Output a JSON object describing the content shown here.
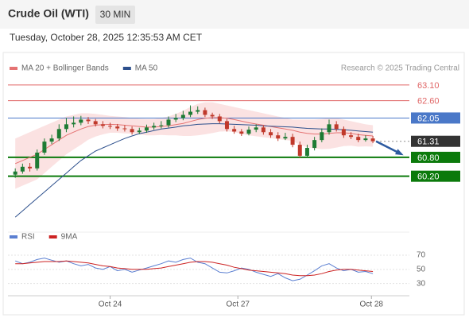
{
  "chart_data": [
    {
      "type": "candlestick",
      "title": "Crude Oil (WTI)",
      "timeframe": "30 MIN",
      "subtitle": "Tuesday, October 28, 2025 12:35:53 AM CET",
      "source": "Research © 2025 Trading Central",
      "xlim": [
        -1,
        54
      ],
      "ylim": [
        58.6,
        63.4
      ],
      "up_color": "#1e7b34",
      "down_color": "#c0392b",
      "ohlc": {
        "open": [
          60.25,
          60.35,
          60.5,
          60.45,
          60.95,
          61.3,
          61.4,
          61.7,
          61.85,
          61.9,
          62.0,
          61.95,
          61.85,
          61.8,
          61.78,
          61.72,
          61.7,
          61.6,
          61.65,
          61.75,
          61.8,
          61.82,
          62.0,
          62.05,
          62.15,
          62.25,
          62.3,
          62.15,
          62.1,
          61.95,
          61.7,
          61.62,
          61.55,
          61.68,
          61.75,
          61.6,
          61.5,
          61.4,
          61.45,
          61.2,
          60.85,
          61.1,
          61.35,
          61.6,
          61.85,
          61.7,
          61.5,
          61.45,
          61.35,
          61.4
        ],
        "high": [
          60.45,
          60.6,
          60.62,
          61.05,
          61.4,
          61.52,
          61.85,
          62.05,
          62.1,
          62.12,
          62.08,
          62.02,
          61.95,
          61.9,
          61.86,
          61.82,
          61.78,
          61.74,
          61.84,
          61.9,
          61.95,
          62.1,
          62.18,
          62.28,
          62.45,
          62.42,
          62.38,
          62.22,
          62.18,
          62.02,
          61.8,
          61.7,
          61.78,
          61.85,
          61.82,
          61.7,
          61.6,
          61.58,
          61.55,
          61.3,
          61.2,
          61.45,
          61.72,
          62.0,
          61.95,
          61.78,
          61.6,
          61.55,
          61.5,
          61.48
        ],
        "low": [
          60.15,
          60.28,
          60.35,
          60.38,
          60.88,
          61.22,
          61.32,
          61.6,
          61.75,
          61.82,
          61.86,
          61.78,
          61.72,
          61.7,
          61.64,
          61.62,
          61.52,
          61.54,
          61.58,
          61.68,
          61.72,
          61.75,
          61.92,
          61.98,
          62.08,
          62.18,
          62.08,
          62.02,
          61.88,
          61.62,
          61.55,
          61.48,
          61.5,
          61.6,
          61.52,
          61.42,
          61.32,
          61.35,
          61.12,
          60.78,
          60.8,
          61.02,
          61.28,
          61.52,
          61.62,
          61.42,
          61.38,
          61.28,
          61.3,
          61.25
        ],
        "close": [
          60.35,
          60.5,
          60.45,
          60.95,
          61.3,
          61.4,
          61.7,
          61.85,
          61.9,
          62.0,
          61.95,
          61.85,
          61.8,
          61.78,
          61.72,
          61.7,
          61.6,
          61.65,
          61.75,
          61.8,
          61.82,
          62.0,
          62.05,
          62.15,
          62.25,
          62.3,
          62.15,
          62.1,
          61.95,
          61.7,
          61.62,
          61.55,
          61.68,
          61.75,
          61.6,
          61.5,
          61.4,
          61.45,
          61.2,
          60.85,
          61.1,
          61.35,
          61.6,
          61.85,
          61.7,
          61.5,
          61.45,
          61.35,
          61.4,
          61.31
        ]
      },
      "series": [
        {
          "name": "MA 20 + Bollinger Bands",
          "color": "#e57373",
          "band_color": "#f9d5d5",
          "values": [
            60.6,
            60.7,
            60.8,
            60.9,
            61.05,
            61.2,
            61.35,
            61.5,
            61.6,
            61.7,
            61.78,
            61.82,
            61.84,
            61.85,
            61.84,
            61.82,
            61.8,
            61.78,
            61.76,
            61.76,
            61.78,
            61.8,
            61.84,
            61.88,
            61.94,
            62.0,
            62.04,
            62.06,
            62.06,
            62.04,
            62.0,
            61.95,
            61.9,
            61.86,
            61.82,
            61.78,
            61.74,
            61.7,
            61.66,
            61.6,
            61.56,
            61.54,
            61.54,
            61.56,
            61.58,
            61.58,
            61.56,
            61.52,
            61.5,
            61.48
          ],
          "upper": [
            61.4,
            61.5,
            61.6,
            61.7,
            61.8,
            61.9,
            62.0,
            62.1,
            62.15,
            62.2,
            62.2,
            62.18,
            62.15,
            62.12,
            62.1,
            62.08,
            62.05,
            62.03,
            62.02,
            62.02,
            62.05,
            62.1,
            62.18,
            62.28,
            62.4,
            62.5,
            62.55,
            62.55,
            62.5,
            62.45,
            62.4,
            62.35,
            62.3,
            62.25,
            62.2,
            62.15,
            62.1,
            62.05,
            62.0,
            62.0,
            62.0,
            62.0,
            62.02,
            62.05,
            62.05,
            62.0,
            61.95,
            61.9,
            61.85,
            61.82
          ],
          "lower": [
            59.8,
            59.9,
            60.0,
            60.1,
            60.3,
            60.5,
            60.7,
            60.9,
            61.05,
            61.2,
            61.36,
            61.46,
            61.53,
            61.58,
            61.58,
            61.56,
            61.55,
            61.53,
            61.5,
            61.5,
            61.51,
            61.5,
            61.5,
            61.48,
            61.48,
            61.5,
            61.53,
            61.57,
            61.62,
            61.63,
            61.6,
            61.55,
            61.5,
            61.47,
            61.44,
            61.41,
            61.38,
            61.35,
            61.32,
            61.2,
            61.12,
            61.08,
            61.06,
            61.07,
            61.11,
            61.16,
            61.17,
            61.14,
            61.15,
            61.14
          ]
        },
        {
          "name": "MA 50",
          "color": "#2c4f8c",
          "values": [
            58.9,
            59.1,
            59.3,
            59.5,
            59.7,
            59.9,
            60.1,
            60.3,
            60.5,
            60.7,
            60.85,
            61.0,
            61.1,
            61.2,
            61.3,
            61.4,
            61.48,
            61.55,
            61.6,
            61.65,
            61.7,
            61.73,
            61.76,
            61.8,
            61.82,
            61.85,
            61.86,
            61.87,
            61.87,
            61.86,
            61.85,
            61.84,
            61.83,
            61.82,
            61.8,
            61.79,
            61.78,
            61.77,
            61.76,
            61.74,
            61.72,
            61.71,
            61.7,
            61.7,
            61.69,
            61.68,
            61.66,
            61.64,
            61.62,
            61.6
          ]
        }
      ],
      "levels": [
        {
          "value": 63.1,
          "label": "63.10",
          "color": "#e06666",
          "line": "thin",
          "filled": false
        },
        {
          "value": 62.6,
          "label": "62.60",
          "color": "#e06666",
          "line": "thin",
          "filled": false
        },
        {
          "value": 62.05,
          "label": "62.05",
          "color": "#4a78c8",
          "line": "thin",
          "filled": true
        },
        {
          "value": 61.31,
          "label": "61.31",
          "color": "#333333",
          "line": "dotted",
          "filled": true
        },
        {
          "value": 60.8,
          "label": "60.80",
          "color": "#0b7a0b",
          "line": "thick",
          "filled": true
        },
        {
          "value": 60.2,
          "label": "60.20",
          "color": "#0b7a0b",
          "line": "thick",
          "filled": true
        }
      ]
    },
    {
      "type": "line",
      "xlim": [
        -1,
        54
      ],
      "ylim": [
        15,
        88
      ],
      "yticks": [
        30,
        50,
        70
      ],
      "xticks": [
        {
          "value": 13,
          "label": "Oct 24"
        },
        {
          "value": 30.5,
          "label": "Oct 27"
        },
        {
          "value": 48.8,
          "label": "Oct 28"
        }
      ],
      "series": [
        {
          "name": "RSI",
          "color": "#5b7fd1",
          "values": [
            62,
            58,
            60,
            64,
            66,
            63,
            60,
            62,
            58,
            55,
            57,
            52,
            50,
            54,
            48,
            50,
            46,
            49,
            52,
            55,
            58,
            62,
            60,
            64,
            66,
            60,
            58,
            52,
            46,
            45,
            48,
            52,
            50,
            46,
            43,
            40,
            44,
            38,
            34,
            36,
            42,
            48,
            55,
            58,
            52,
            48,
            50,
            46,
            47,
            44
          ]
        },
        {
          "name": "9MA",
          "color": "#cc2222",
          "values": [
            58,
            58,
            59,
            60,
            61,
            61,
            61,
            62,
            61,
            60,
            59,
            57,
            55,
            54,
            52,
            51,
            50,
            50,
            50,
            51,
            52,
            54,
            56,
            58,
            60,
            61,
            61,
            60,
            58,
            56,
            53,
            51,
            49,
            48,
            47,
            46,
            45,
            44,
            42,
            41,
            41,
            42,
            44,
            47,
            49,
            50,
            50,
            49,
            48,
            47
          ]
        }
      ]
    }
  ]
}
